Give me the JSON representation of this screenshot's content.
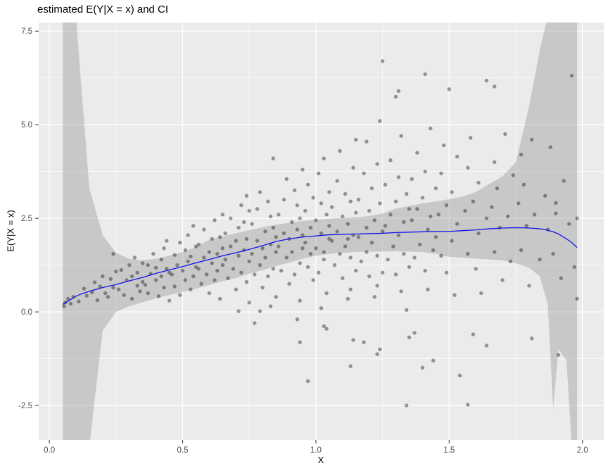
{
  "chart_data": {
    "type": "scatter",
    "title": "estimated E(Y|X = x) and CI",
    "xlabel": "X",
    "ylabel": "E(Y|X = x)",
    "xlim": [
      -0.04,
      2.08
    ],
    "ylim": [
      -3.42,
      7.73
    ],
    "x_ticks": {
      "values": [
        0.0,
        0.5,
        1.0,
        1.5,
        2.0
      ],
      "labels": [
        "0.0",
        "0.5",
        "1.0",
        "1.5",
        "2.0"
      ]
    },
    "y_ticks": {
      "values": [
        -2.5,
        0.0,
        2.5,
        5.0,
        7.5
      ],
      "labels": [
        "-2.5",
        "0.0",
        "2.5",
        "5.0",
        "7.5"
      ]
    },
    "x_minor": [
      0.25,
      0.75,
      1.25,
      1.75
    ],
    "y_minor": [
      -1.25,
      1.25,
      3.75,
      6.25
    ],
    "grid": "on",
    "legend": "none",
    "colors": {
      "panel": "#ebebeb",
      "grid": "#ffffff",
      "band": "#999999",
      "band_opacity": 0.42,
      "point": "#000000",
      "point_opacity": 0.38,
      "line": "#1414e6",
      "tick_text": "#4d4d4d",
      "axis_tick": "#333333",
      "title_text": "#000000"
    },
    "smooth": {
      "x": [
        0.05,
        0.08,
        0.1,
        0.12,
        0.15,
        0.2,
        0.25,
        0.3,
        0.35,
        0.4,
        0.45,
        0.5,
        0.55,
        0.6,
        0.65,
        0.7,
        0.75,
        0.8,
        0.85,
        0.9,
        0.95,
        1.0,
        1.05,
        1.1,
        1.15,
        1.2,
        1.25,
        1.3,
        1.35,
        1.4,
        1.45,
        1.5,
        1.55,
        1.6,
        1.65,
        1.7,
        1.75,
        1.8,
        1.84,
        1.87,
        1.89,
        1.91,
        1.94,
        1.96,
        1.98
      ],
      "y": [
        0.2,
        0.33,
        0.42,
        0.48,
        0.55,
        0.65,
        0.73,
        0.83,
        0.92,
        1.03,
        1.12,
        1.21,
        1.31,
        1.4,
        1.5,
        1.58,
        1.67,
        1.77,
        1.88,
        1.95,
        2.0,
        2.03,
        2.06,
        2.07,
        2.08,
        2.09,
        2.1,
        2.12,
        2.13,
        2.14,
        2.15,
        2.15,
        2.17,
        2.19,
        2.22,
        2.24,
        2.25,
        2.24,
        2.22,
        2.18,
        2.14,
        2.08,
        1.95,
        1.85,
        1.72
      ],
      "ci_upper": [
        7.9,
        7.9,
        7.9,
        6.0,
        3.3,
        2.05,
        1.58,
        1.42,
        1.38,
        1.42,
        1.5,
        1.6,
        1.74,
        1.92,
        2.02,
        2.1,
        2.18,
        2.26,
        2.33,
        2.38,
        2.43,
        2.46,
        2.49,
        2.51,
        2.53,
        2.56,
        2.63,
        2.76,
        2.83,
        2.9,
        2.95,
        3.01,
        3.08,
        3.2,
        3.42,
        3.62,
        4.0,
        5.5,
        7.0,
        7.9,
        7.9,
        7.9,
        7.9,
        7.9,
        7.9
      ],
      "ci_lower": [
        -3.6,
        -3.6,
        -3.6,
        -3.6,
        -3.6,
        -0.5,
        0.0,
        0.15,
        0.26,
        0.36,
        0.45,
        0.53,
        0.62,
        0.72,
        0.82,
        0.9,
        1.02,
        1.12,
        1.22,
        1.32,
        1.42,
        1.5,
        1.55,
        1.58,
        1.6,
        1.61,
        1.61,
        1.62,
        1.61,
        1.6,
        1.55,
        1.47,
        1.45,
        1.42,
        1.4,
        1.38,
        1.3,
        1.18,
        0.95,
        0.2,
        -2.6,
        -1.0,
        -1.3,
        -3.6,
        -3.6
      ]
    },
    "points": [
      [
        0.055,
        0.15
      ],
      [
        0.06,
        0.25
      ],
      [
        0.07,
        0.35
      ],
      [
        0.08,
        0.22
      ],
      [
        0.09,
        0.4
      ],
      [
        0.11,
        0.28
      ],
      [
        0.13,
        0.62
      ],
      [
        0.14,
        0.43
      ],
      [
        0.16,
        0.52
      ],
      [
        0.17,
        0.79
      ],
      [
        0.18,
        0.31
      ],
      [
        0.19,
        0.68
      ],
      [
        0.2,
        0.95
      ],
      [
        0.21,
        0.5
      ],
      [
        0.22,
        0.4
      ],
      [
        0.23,
        0.88
      ],
      [
        0.24,
        0.65
      ],
      [
        0.24,
        1.55
      ],
      [
        0.25,
        1.08
      ],
      [
        0.26,
        0.6
      ],
      [
        0.27,
        1.12
      ],
      [
        0.28,
        0.45
      ],
      [
        0.29,
        0.85
      ],
      [
        0.3,
        1.25
      ],
      [
        0.31,
        0.35
      ],
      [
        0.31,
        0.95
      ],
      [
        0.32,
        1.45
      ],
      [
        0.33,
        0.7
      ],
      [
        0.33,
        1.05
      ],
      [
        0.34,
        0.55
      ],
      [
        0.35,
        1.3
      ],
      [
        0.35,
        0.8
      ],
      [
        0.36,
        0.72
      ],
      [
        0.37,
        1.25
      ],
      [
        0.37,
        0.5
      ],
      [
        0.38,
        1.02
      ],
      [
        0.39,
        1.55
      ],
      [
        0.4,
        0.85
      ],
      [
        0.4,
        1.18
      ],
      [
        0.41,
        0.42
      ],
      [
        0.42,
        1.4
      ],
      [
        0.42,
        0.95
      ],
      [
        0.43,
        1.7
      ],
      [
        0.43,
        0.65
      ],
      [
        0.44,
        1.15
      ],
      [
        0.44,
        1.9
      ],
      [
        0.45,
        0.3
      ],
      [
        0.45,
        1.05
      ],
      [
        0.46,
        1.0
      ],
      [
        0.47,
        1.52
      ],
      [
        0.47,
        0.68
      ],
      [
        0.48,
        1.25
      ],
      [
        0.49,
        1.85
      ],
      [
        0.49,
        0.45
      ],
      [
        0.5,
        1.1
      ],
      [
        0.51,
        1.65
      ],
      [
        0.51,
        0.85
      ],
      [
        0.52,
        2.05
      ],
      [
        0.52,
        1.35
      ],
      [
        0.53,
        0.6
      ],
      [
        0.53,
        1.48
      ],
      [
        0.54,
        2.3
      ],
      [
        0.54,
        0.95
      ],
      [
        0.55,
        1.2
      ],
      [
        0.55,
        1.75
      ],
      [
        0.56,
        1.15
      ],
      [
        0.56,
        1.8
      ],
      [
        0.57,
        0.75
      ],
      [
        0.58,
        1.45
      ],
      [
        0.58,
        2.2
      ],
      [
        0.59,
        1.0
      ],
      [
        0.6,
        1.6
      ],
      [
        0.6,
        0.5
      ],
      [
        0.61,
        1.95
      ],
      [
        0.61,
        1.3
      ],
      [
        0.62,
        2.45
      ],
      [
        0.62,
        0.85
      ],
      [
        0.63,
        1.55
      ],
      [
        0.63,
        1.1
      ],
      [
        0.64,
        2.0
      ],
      [
        0.64,
        0.35
      ],
      [
        0.65,
        1.7
      ],
      [
        0.65,
        1.25
      ],
      [
        0.65,
        2.6
      ],
      [
        0.66,
        1.4
      ],
      [
        0.66,
        2.1
      ],
      [
        0.67,
        0.9
      ],
      [
        0.68,
        1.75
      ],
      [
        0.68,
        2.5
      ],
      [
        0.69,
        1.15
      ],
      [
        0.7,
        1.9
      ],
      [
        0.7,
        0.6
      ],
      [
        0.71,
        2.25
      ],
      [
        0.71,
        1.5
      ],
      [
        0.72,
        2.85
      ],
      [
        0.72,
        1.05
      ],
      [
        0.73,
        1.65
      ],
      [
        0.73,
        2.4
      ],
      [
        0.74,
        0.8
      ],
      [
        0.74,
        1.95
      ],
      [
        0.75,
        1.35
      ],
      [
        0.75,
        2.7
      ],
      [
        0.75,
        0.25
      ],
      [
        0.71,
        0.02
      ],
      [
        0.74,
        3.1
      ],
      [
        0.76,
        1.55
      ],
      [
        0.76,
        2.35
      ],
      [
        0.77,
        1.0
      ],
      [
        0.77,
        -0.3
      ],
      [
        0.78,
        1.9
      ],
      [
        0.78,
        2.75
      ],
      [
        0.79,
        1.25
      ],
      [
        0.79,
        3.2
      ],
      [
        0.79,
        0.02
      ],
      [
        0.8,
        1.7
      ],
      [
        0.8,
        0.65
      ],
      [
        0.81,
        2.15
      ],
      [
        0.81,
        1.45
      ],
      [
        0.82,
        2.95
      ],
      [
        0.82,
        0.95
      ],
      [
        0.83,
        1.8
      ],
      [
        0.83,
        2.55
      ],
      [
        0.84,
        1.15
      ],
      [
        0.84,
        4.1
      ],
      [
        0.85,
        2.0
      ],
      [
        0.85,
        0.4
      ],
      [
        0.85,
        1.6
      ],
      [
        0.84,
        2.25
      ],
      [
        0.83,
        0.15
      ],
      [
        0.86,
        1.75
      ],
      [
        0.86,
        2.6
      ],
      [
        0.87,
        1.1
      ],
      [
        0.88,
        2.1
      ],
      [
        0.88,
        3.0
      ],
      [
        0.89,
        1.45
      ],
      [
        0.89,
        3.55
      ],
      [
        0.9,
        1.95
      ],
      [
        0.9,
        0.75
      ],
      [
        0.91,
        2.4
      ],
      [
        0.91,
        1.6
      ],
      [
        0.92,
        3.25
      ],
      [
        0.92,
        1.0
      ],
      [
        0.93,
        2.2
      ],
      [
        0.93,
        2.85
      ],
      [
        0.94,
        1.3
      ],
      [
        0.94,
        0.3
      ],
      [
        0.94,
        -0.81
      ],
      [
        0.95,
        2.05
      ],
      [
        0.95,
        3.8
      ],
      [
        0.95,
        1.7
      ],
      [
        0.94,
        2.5
      ],
      [
        0.93,
        -0.2
      ],
      [
        0.96,
        1.85
      ],
      [
        0.96,
        2.7
      ],
      [
        0.97,
        1.2
      ],
      [
        0.97,
        3.4
      ],
      [
        0.97,
        -1.85
      ],
      [
        0.98,
        2.25
      ],
      [
        0.98,
        1.55
      ],
      [
        0.99,
        3.05
      ],
      [
        0.99,
        0.85
      ],
      [
        1.0,
        2.45
      ],
      [
        1.0,
        1.7
      ],
      [
        1.01,
        3.7
      ],
      [
        1.01,
        1.05
      ],
      [
        1.02,
        2.1
      ],
      [
        1.02,
        2.9
      ],
      [
        1.03,
        1.4
      ],
      [
        1.03,
        4.1
      ],
      [
        1.03,
        -0.38
      ],
      [
        1.04,
        2.6
      ],
      [
        1.04,
        0.5
      ],
      [
        1.05,
        1.95
      ],
      [
        1.05,
        3.2
      ],
      [
        1.05,
        2.3
      ],
      [
        1.04,
        -0.45
      ],
      [
        1.03,
        1.6
      ],
      [
        1.02,
        0.1
      ],
      [
        1.06,
        1.9
      ],
      [
        1.06,
        2.8
      ],
      [
        1.07,
        1.25
      ],
      [
        1.08,
        3.5
      ],
      [
        1.08,
        2.15
      ],
      [
        1.09,
        1.55
      ],
      [
        1.09,
        4.3
      ],
      [
        1.1,
        2.55
      ],
      [
        1.1,
        0.9
      ],
      [
        1.11,
        3.15
      ],
      [
        1.11,
        1.75
      ],
      [
        1.12,
        2.35
      ],
      [
        1.12,
        0.35
      ],
      [
        1.13,
        2.95
      ],
      [
        1.13,
        1.45
      ],
      [
        1.13,
        -1.45
      ],
      [
        1.14,
        3.85
      ],
      [
        1.14,
        2.05
      ],
      [
        1.15,
        1.1
      ],
      [
        1.15,
        2.65
      ],
      [
        1.15,
        4.6
      ],
      [
        1.14,
        -0.75
      ],
      [
        1.13,
        0.6
      ],
      [
        1.12,
        1.95
      ],
      [
        1.16,
        2.0
      ],
      [
        1.16,
        3.0
      ],
      [
        1.17,
        1.35
      ],
      [
        1.18,
        3.7
      ],
      [
        1.18,
        -0.81
      ],
      [
        1.19,
        2.25
      ],
      [
        1.19,
        1.6
      ],
      [
        1.19,
        4.55
      ],
      [
        1.2,
        2.7
      ],
      [
        1.2,
        0.95
      ],
      [
        1.21,
        3.3
      ],
      [
        1.21,
        1.85
      ],
      [
        1.22,
        2.45
      ],
      [
        1.22,
        0.4
      ],
      [
        1.23,
        3.95
      ],
      [
        1.23,
        1.5
      ],
      [
        1.23,
        -1.13
      ],
      [
        1.24,
        2.9
      ],
      [
        1.24,
        5.1
      ],
      [
        1.25,
        2.15
      ],
      [
        1.25,
        6.7
      ],
      [
        1.25,
        1.05
      ],
      [
        1.24,
        -1.0
      ],
      [
        1.23,
        0.7
      ],
      [
        1.26,
        2.3
      ],
      [
        1.26,
        3.4
      ],
      [
        1.27,
        1.4
      ],
      [
        1.28,
        4.05
      ],
      [
        1.28,
        2.6
      ],
      [
        1.29,
        1.75
      ],
      [
        1.3,
        5.75
      ],
      [
        1.31,
        5.9
      ],
      [
        1.3,
        2.95
      ],
      [
        1.3,
        1.0
      ],
      [
        1.31,
        3.6
      ],
      [
        1.31,
        2.05
      ],
      [
        1.32,
        0.55
      ],
      [
        1.32,
        4.7
      ],
      [
        1.33,
        2.4
      ],
      [
        1.33,
        1.55
      ],
      [
        1.34,
        3.15
      ],
      [
        1.34,
        -2.5
      ],
      [
        1.35,
        2.75
      ],
      [
        1.35,
        1.2
      ],
      [
        1.35,
        -0.68
      ],
      [
        1.34,
        0.05
      ],
      [
        1.36,
        2.45
      ],
      [
        1.36,
        3.55
      ],
      [
        1.37,
        1.45
      ],
      [
        1.37,
        -0.56
      ],
      [
        1.38,
        4.25
      ],
      [
        1.38,
        2.75
      ],
      [
        1.39,
        1.8
      ],
      [
        1.4,
        3.05
      ],
      [
        1.4,
        -1.49
      ],
      [
        1.41,
        1.1
      ],
      [
        1.41,
        3.75
      ],
      [
        1.41,
        6.35
      ],
      [
        1.42,
        2.2
      ],
      [
        1.42,
        0.6
      ],
      [
        1.43,
        4.9
      ],
      [
        1.43,
        2.55
      ],
      [
        1.44,
        1.65
      ],
      [
        1.44,
        -1.3
      ],
      [
        1.45,
        3.3
      ],
      [
        1.45,
        2.0
      ],
      [
        1.46,
        2.6
      ],
      [
        1.47,
        3.7
      ],
      [
        1.47,
        1.5
      ],
      [
        1.48,
        4.45
      ],
      [
        1.49,
        2.85
      ],
      [
        1.49,
        1.05
      ],
      [
        1.5,
        5.95
      ],
      [
        1.51,
        3.2
      ],
      [
        1.51,
        1.9
      ],
      [
        1.52,
        0.45
      ],
      [
        1.53,
        4.15
      ],
      [
        1.53,
        2.35
      ],
      [
        1.54,
        -1.7
      ],
      [
        1.56,
        2.7
      ],
      [
        1.57,
        3.85
      ],
      [
        1.57,
        1.55
      ],
      [
        1.57,
        -2.48
      ],
      [
        1.58,
        4.65
      ],
      [
        1.59,
        2.95
      ],
      [
        1.59,
        -0.6
      ],
      [
        1.6,
        1.15
      ],
      [
        1.61,
        3.45
      ],
      [
        1.61,
        2.1
      ],
      [
        1.62,
        0.5
      ],
      [
        1.64,
        6.18
      ],
      [
        1.64,
        2.5
      ],
      [
        1.64,
        -0.9
      ],
      [
        1.66,
        2.8
      ],
      [
        1.67,
        4.0
      ],
      [
        1.67,
        1.6
      ],
      [
        1.67,
        6.02
      ],
      [
        1.68,
        3.3
      ],
      [
        1.69,
        2.25
      ],
      [
        1.7,
        0.85
      ],
      [
        1.71,
        4.75
      ],
      [
        1.72,
        2.55
      ],
      [
        1.73,
        1.35
      ],
      [
        1.74,
        3.65
      ],
      [
        1.76,
        2.9
      ],
      [
        1.77,
        4.2
      ],
      [
        1.77,
        1.65
      ],
      [
        1.78,
        3.4
      ],
      [
        1.79,
        2.3
      ],
      [
        1.8,
        0.7
      ],
      [
        1.81,
        4.6
      ],
      [
        1.81,
        -0.71
      ],
      [
        1.82,
        2.6
      ],
      [
        1.84,
        1.4
      ],
      [
        1.86,
        3.1
      ],
      [
        1.87,
        2.2
      ],
      [
        1.88,
        4.4
      ],
      [
        1.89,
        1.55
      ],
      [
        1.9,
        2.91
      ],
      [
        1.9,
        2.63
      ],
      [
        1.91,
        -1.15
      ],
      [
        1.92,
        0.9
      ],
      [
        1.93,
        3.5
      ],
      [
        1.95,
        2.35
      ],
      [
        1.96,
        6.31
      ],
      [
        1.97,
        1.2
      ],
      [
        1.98,
        2.5
      ],
      [
        1.98,
        0.35
      ]
    ]
  }
}
